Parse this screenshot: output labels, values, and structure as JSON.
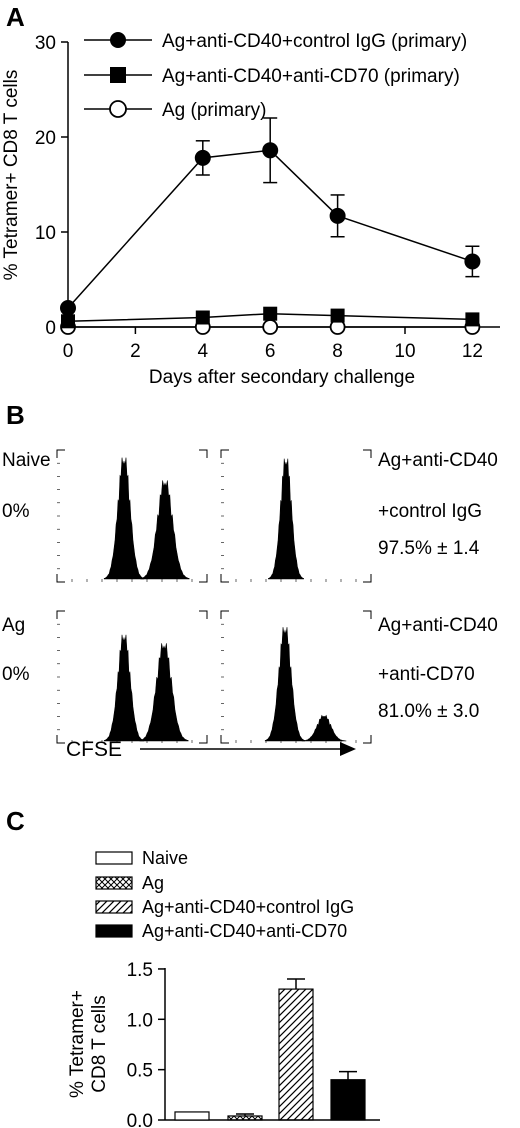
{
  "chart_data": [
    {
      "panel": "A",
      "type": "line",
      "xlabel": "Days after secondary challenge",
      "ylabel": "% Tetramer+ CD8 T cells",
      "xlim": [
        0,
        12.5
      ],
      "ylim": [
        0,
        30
      ],
      "xticks": [
        0,
        2,
        4,
        6,
        8,
        10,
        12
      ],
      "yticks": [
        0,
        10,
        20,
        30
      ],
      "legend": "top",
      "series": [
        {
          "name": "Ag+anti-CD40+control IgG (primary)",
          "marker": "filled-circle",
          "x": [
            0,
            4,
            6,
            8,
            12
          ],
          "y": [
            2.0,
            17.8,
            18.6,
            11.7,
            6.9
          ],
          "err": [
            0.2,
            1.8,
            3.4,
            2.2,
            1.6
          ]
        },
        {
          "name": "Ag+anti-CD40+anti-CD70 (primary)",
          "marker": "filled-square",
          "x": [
            0,
            4,
            6,
            8,
            12
          ],
          "y": [
            0.6,
            1.0,
            1.4,
            1.2,
            0.8
          ],
          "err": [
            0,
            0,
            0,
            0,
            0
          ]
        },
        {
          "name": "Ag (primary)",
          "marker": "open-circle",
          "x": [
            0,
            4,
            6,
            8,
            12
          ],
          "y": [
            0.0,
            0.0,
            0.0,
            0.0,
            0.0
          ],
          "err": [
            0,
            0,
            0,
            0,
            0
          ]
        }
      ]
    },
    {
      "panel": "B",
      "type": "histogram",
      "xlabel": "CFSE",
      "rows": [
        {
          "left_name": "Naive",
          "left_pct": "0%",
          "right_name_line1": "Ag+anti-CD40",
          "right_name_line2": "+control IgG",
          "right_pct": "97.5% ± 1.4"
        },
        {
          "left_name": "Ag",
          "left_pct": "0%",
          "right_name_line1": "Ag+anti-CD40",
          "right_name_line2": "+anti-CD70",
          "right_pct": "81.0% ± 3.0"
        }
      ]
    },
    {
      "panel": "C",
      "type": "bar",
      "ylabel_line1": "% Tetramer+",
      "ylabel_line2": "CD8 T cells",
      "ylim": [
        0,
        1.5
      ],
      "yticks": [
        "0.0",
        "0.5",
        "1.0",
        "1.5"
      ],
      "legend": "top",
      "categories": [
        "Naive",
        "Ag",
        "Ag+anti-CD40+control IgG",
        "Ag+anti-CD40+anti-CD70"
      ],
      "values": [
        0.08,
        0.04,
        1.3,
        0.4
      ],
      "errors": [
        0.0,
        0.02,
        0.1,
        0.08
      ],
      "fills": [
        "open",
        "crosshatch",
        "diagonal",
        "solid"
      ]
    }
  ],
  "panels": {
    "a": "A",
    "b": "B",
    "c": "C"
  }
}
